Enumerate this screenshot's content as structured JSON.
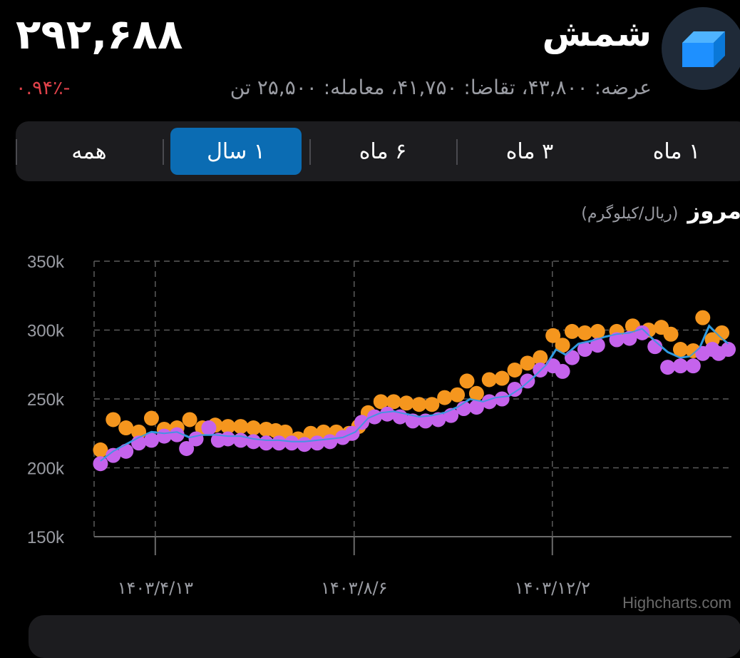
{
  "header": {
    "title": "شمش",
    "price": "۲۹۲,۶۸۸",
    "change": "-۰.۹۴٪",
    "stats": "عرضه: ۴۳,۸۰۰، تقاضا: ۴۱,۷۵۰، معامله: ۲۵,۵۰۰ تن",
    "logo_icon": "gold-bar-icon"
  },
  "tabs": [
    {
      "label": "۱ ماه",
      "active": false
    },
    {
      "label": "۳ ماه",
      "active": false
    },
    {
      "label": "۶ ماه",
      "active": false
    },
    {
      "label": "۱ سال",
      "active": true
    },
    {
      "label": "همه",
      "active": false
    }
  ],
  "chart_section": {
    "title": "مروز",
    "unit": "(ریال/کیلوگرم)"
  },
  "colors": {
    "accent": "#0b6cb3",
    "negative": "#e0424a",
    "series_orange": "#f5961e",
    "series_purple": "#c563ec",
    "series_line": "#2f9be0"
  },
  "chart_data": {
    "type": "scatter",
    "ylim": [
      150000,
      350000
    ],
    "y_ticks": [
      "350k",
      "300k",
      "250k",
      "200k",
      "150k"
    ],
    "y_tick_values": [
      350000,
      300000,
      250000,
      200000,
      150000
    ],
    "xlim": [
      0,
      100
    ],
    "x_tick_positions": [
      9.6,
      40.8,
      71.9
    ],
    "x_ticks": [
      "۱۴۰۳/۴/۱۳",
      "۱۴۰۳/۸/۶",
      "۱۴۰۳/۱۲/۲"
    ],
    "grid": true,
    "watermark": "Highcharts.com",
    "series": [
      {
        "type": "scatter",
        "color": "#f5961e",
        "points": [
          [
            1,
            213000
          ],
          [
            3,
            235000
          ],
          [
            5,
            229000
          ],
          [
            7,
            226000
          ],
          [
            9,
            236000
          ],
          [
            11,
            228000
          ],
          [
            13,
            229000
          ],
          [
            15,
            235000
          ],
          [
            17,
            229000
          ],
          [
            19,
            231000
          ],
          [
            21,
            230000
          ],
          [
            23,
            230000
          ],
          [
            25,
            229000
          ],
          [
            27,
            228000
          ],
          [
            28.5,
            227000
          ],
          [
            30,
            226000
          ],
          [
            32,
            221000
          ],
          [
            34,
            225000
          ],
          [
            36,
            226000
          ],
          [
            38,
            226000
          ],
          [
            40,
            225000
          ],
          [
            41.5,
            230000
          ],
          [
            43,
            240000
          ],
          [
            45,
            248000
          ],
          [
            47,
            248000
          ],
          [
            49,
            247000
          ],
          [
            51,
            246000
          ],
          [
            53,
            246000
          ],
          [
            55,
            251000
          ],
          [
            57,
            253000
          ],
          [
            58.5,
            263000
          ],
          [
            60,
            254000
          ],
          [
            62,
            264000
          ],
          [
            64,
            265000
          ],
          [
            66,
            271000
          ],
          [
            68,
            276000
          ],
          [
            70,
            280000
          ],
          [
            72,
            296000
          ],
          [
            73.5,
            289000
          ],
          [
            75,
            299000
          ],
          [
            77,
            298000
          ],
          [
            79,
            299000
          ],
          [
            82,
            299000
          ],
          [
            84.5,
            303000
          ],
          [
            87,
            300000
          ],
          [
            89,
            302000
          ],
          [
            90.5,
            297000
          ],
          [
            92,
            286000
          ],
          [
            94,
            285000
          ],
          [
            95.5,
            309000
          ],
          [
            97,
            293000
          ],
          [
            98.5,
            298000
          ]
        ]
      },
      {
        "type": "scatter",
        "color": "#c563ec",
        "points": [
          [
            1,
            203000
          ],
          [
            3,
            209000
          ],
          [
            5,
            212000
          ],
          [
            7,
            218000
          ],
          [
            9,
            220000
          ],
          [
            11,
            223000
          ],
          [
            13,
            224000
          ],
          [
            14.5,
            214000
          ],
          [
            16,
            221000
          ],
          [
            18,
            229000
          ],
          [
            19.5,
            220000
          ],
          [
            21,
            221000
          ],
          [
            23,
            220000
          ],
          [
            25,
            219000
          ],
          [
            27,
            218000
          ],
          [
            29,
            218000
          ],
          [
            31,
            218000
          ],
          [
            33,
            217000
          ],
          [
            35,
            218000
          ],
          [
            37,
            219000
          ],
          [
            39,
            222000
          ],
          [
            40.5,
            225000
          ],
          [
            42,
            233000
          ],
          [
            44,
            237000
          ],
          [
            46,
            239000
          ],
          [
            48,
            237000
          ],
          [
            50,
            234000
          ],
          [
            52,
            234000
          ],
          [
            54,
            235000
          ],
          [
            56,
            238000
          ],
          [
            58,
            243000
          ],
          [
            60,
            244000
          ],
          [
            62,
            248000
          ],
          [
            64,
            250000
          ],
          [
            66,
            257000
          ],
          [
            68,
            263000
          ],
          [
            70,
            271000
          ],
          [
            72,
            274000
          ],
          [
            73.5,
            270000
          ],
          [
            75,
            280000
          ],
          [
            77,
            286000
          ],
          [
            79,
            289000
          ],
          [
            82,
            293000
          ],
          [
            84,
            294000
          ],
          [
            86,
            298000
          ],
          [
            88,
            288000
          ],
          [
            90,
            273000
          ],
          [
            92,
            274000
          ],
          [
            94,
            274000
          ],
          [
            95.5,
            283000
          ],
          [
            97,
            286000
          ],
          [
            98,
            283000
          ],
          [
            99.5,
            286000
          ]
        ]
      },
      {
        "type": "line",
        "color": "#2f9be0",
        "points": [
          [
            1,
            205000
          ],
          [
            3,
            212000
          ],
          [
            5,
            217000
          ],
          [
            7,
            222000
          ],
          [
            9,
            226000
          ],
          [
            11,
            225000
          ],
          [
            13,
            226000
          ],
          [
            15,
            222000
          ],
          [
            17,
            224000
          ],
          [
            19,
            224000
          ],
          [
            21,
            223000
          ],
          [
            23,
            223000
          ],
          [
            25,
            221000
          ],
          [
            27,
            220000
          ],
          [
            29,
            220000
          ],
          [
            31,
            219000
          ],
          [
            33,
            219000
          ],
          [
            35,
            220000
          ],
          [
            37,
            221000
          ],
          [
            39,
            222000
          ],
          [
            41,
            226000
          ],
          [
            43,
            236000
          ],
          [
            45,
            240000
          ],
          [
            47,
            241000
          ],
          [
            49,
            239000
          ],
          [
            51,
            237000
          ],
          [
            53,
            238000
          ],
          [
            55,
            240000
          ],
          [
            57,
            244000
          ],
          [
            59,
            250000
          ],
          [
            61,
            248000
          ],
          [
            63,
            251000
          ],
          [
            65,
            252000
          ],
          [
            67,
            258000
          ],
          [
            69,
            266000
          ],
          [
            71,
            275000
          ],
          [
            72.5,
            286000
          ],
          [
            74,
            282000
          ],
          [
            76,
            290000
          ],
          [
            78,
            292000
          ],
          [
            80,
            295000
          ],
          [
            82,
            297000
          ],
          [
            84,
            298000
          ],
          [
            86,
            301000
          ],
          [
            88,
            292000
          ],
          [
            90,
            284000
          ],
          [
            92,
            280000
          ],
          [
            93.5,
            281000
          ],
          [
            95,
            287000
          ],
          [
            96.5,
            303000
          ],
          [
            98,
            296000
          ],
          [
            99.5,
            290000
          ]
        ]
      }
    ]
  }
}
